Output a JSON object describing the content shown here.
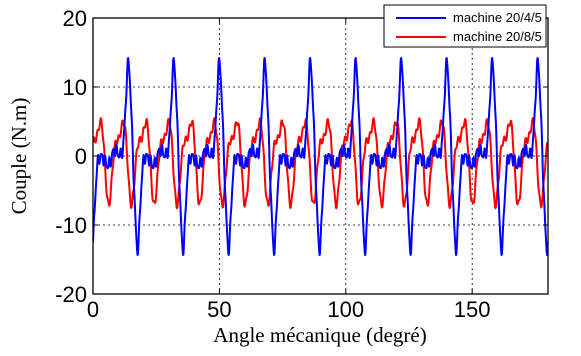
{
  "chart_data": {
    "type": "line",
    "xlabel": "Angle mécanique (degré)",
    "ylabel": "Couple (N.m)",
    "xlim": [
      0,
      180
    ],
    "ylim": [
      -20,
      20
    ],
    "xticks": [
      0,
      50,
      100,
      150
    ],
    "yticks": [
      -20,
      -10,
      0,
      10,
      20
    ],
    "grid": true,
    "grid_style": "dotted",
    "legend_position": "top-right",
    "series": [
      {
        "name": "machine 20/4/5",
        "color": "#0000ff",
        "period_deg": 18,
        "first_peak_deg": 14,
        "peak_value": 13.5,
        "trough_value": -13.5
      },
      {
        "name": "machine 20/8/5",
        "color": "#ff0000",
        "period_deg": 9,
        "first_peak_deg": 2,
        "peak_value": 6,
        "trough_value": -6
      }
    ]
  }
}
